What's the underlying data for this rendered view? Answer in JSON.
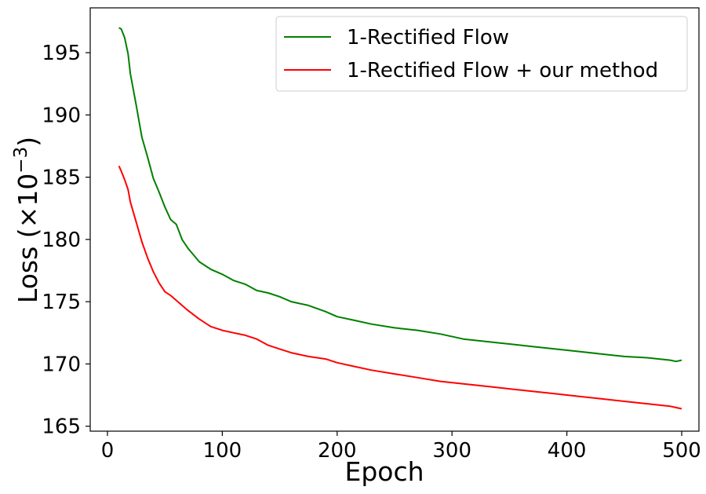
{
  "chart_data": {
    "type": "line",
    "xlabel": "Epoch",
    "ylabel": "Loss (×10",
    "ylabel_exponent": "−3",
    "ylabel_close": ")",
    "xlim": [
      -15,
      515
    ],
    "ylim": [
      164.6,
      198.6
    ],
    "xticks": [
      0,
      100,
      200,
      300,
      400,
      500
    ],
    "yticks": [
      165,
      170,
      175,
      180,
      185,
      190,
      195
    ],
    "grid": false,
    "legend_position": "top-right",
    "series": [
      {
        "name": "1-Rectified Flow",
        "color": "#008000",
        "x": [
          10,
          12,
          15,
          18,
          20,
          25,
          30,
          35,
          40,
          45,
          50,
          55,
          60,
          65,
          70,
          80,
          90,
          100,
          110,
          120,
          130,
          140,
          150,
          160,
          175,
          190,
          200,
          215,
          230,
          250,
          270,
          290,
          310,
          330,
          350,
          370,
          390,
          410,
          430,
          450,
          470,
          490,
          495,
          500
        ],
        "y": [
          197.0,
          196.9,
          196.2,
          194.9,
          193.3,
          190.8,
          188.2,
          186.6,
          184.9,
          183.8,
          182.6,
          181.6,
          181.2,
          180.0,
          179.3,
          178.2,
          177.6,
          177.2,
          176.7,
          176.4,
          175.9,
          175.7,
          175.4,
          175.0,
          174.7,
          174.2,
          173.8,
          173.5,
          173.2,
          172.9,
          172.7,
          172.4,
          172.0,
          171.8,
          171.6,
          171.4,
          171.2,
          171.0,
          170.8,
          170.6,
          170.5,
          170.3,
          170.2,
          170.3
        ]
      },
      {
        "name": "1-Rectified Flow + our method",
        "color": "#ff0000",
        "x": [
          10,
          12,
          15,
          18,
          20,
          25,
          30,
          35,
          40,
          45,
          50,
          55,
          60,
          65,
          70,
          80,
          90,
          100,
          110,
          120,
          130,
          140,
          150,
          160,
          175,
          190,
          200,
          215,
          230,
          250,
          270,
          290,
          310,
          330,
          350,
          370,
          390,
          410,
          430,
          450,
          470,
          490,
          495,
          500
        ],
        "y": [
          185.9,
          185.5,
          184.8,
          184.0,
          183.0,
          181.4,
          179.8,
          178.5,
          177.4,
          176.5,
          175.8,
          175.5,
          175.1,
          174.7,
          174.3,
          173.6,
          173.0,
          172.7,
          172.5,
          172.3,
          172.0,
          171.5,
          171.2,
          170.9,
          170.6,
          170.4,
          170.1,
          169.8,
          169.5,
          169.2,
          168.9,
          168.6,
          168.4,
          168.2,
          168.0,
          167.8,
          167.6,
          167.4,
          167.2,
          167.0,
          166.8,
          166.6,
          166.5,
          166.4
        ]
      }
    ]
  }
}
